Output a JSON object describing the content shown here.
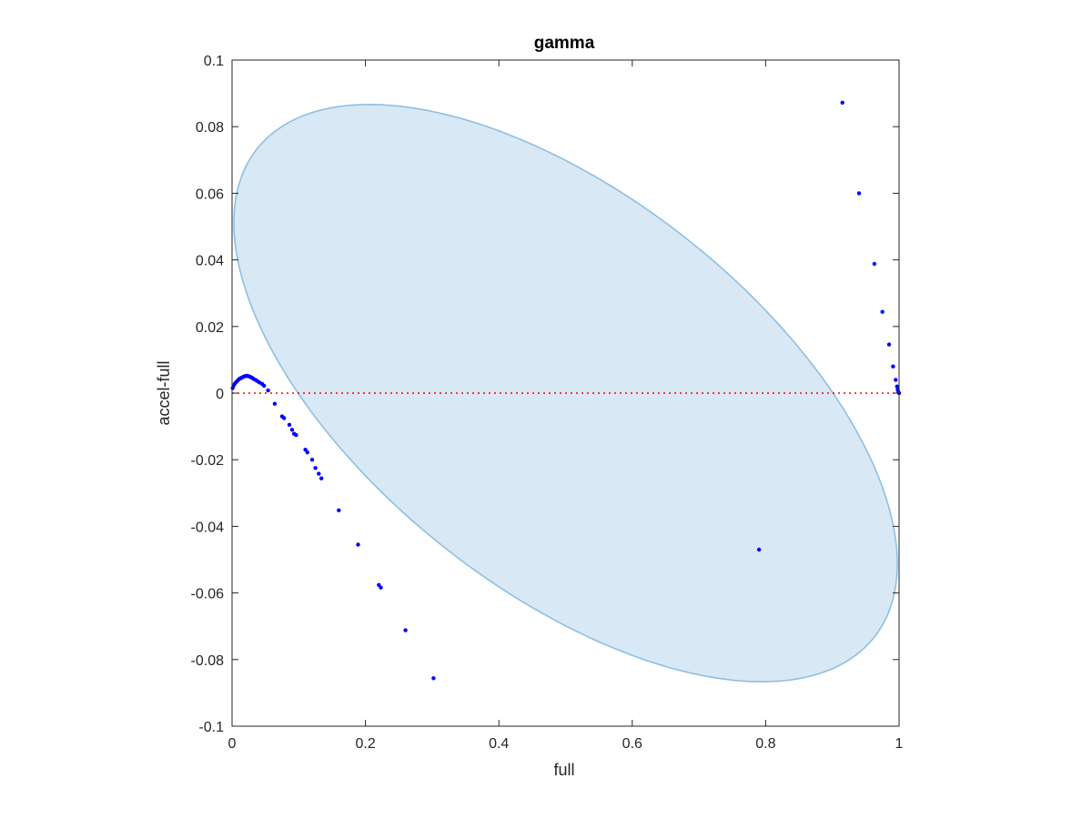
{
  "chart_data": {
    "type": "scatter",
    "title": "gamma",
    "xlabel": "full",
    "ylabel": "accel-full",
    "xlim": [
      0,
      1
    ],
    "ylim": [
      -0.1,
      0.1
    ],
    "xticks": [
      0,
      0.2,
      0.4,
      0.6,
      0.8,
      1
    ],
    "xtick_labels": [
      "0",
      "0.2",
      "0.4",
      "0.6",
      "0.8",
      "1"
    ],
    "yticks": [
      -0.1,
      -0.08,
      -0.06,
      -0.04,
      -0.02,
      0,
      0.02,
      0.04,
      0.06,
      0.08,
      0.1
    ],
    "ytick_labels": [
      "-0.1",
      "-0.08",
      "-0.06",
      "-0.04",
      "-0.02",
      "0",
      "0.02",
      "0.04",
      "0.06",
      "0.08",
      "0.1"
    ],
    "grid": false,
    "box": true,
    "reference_line": {
      "y": 0,
      "style": "dotted",
      "color": "#ff0000"
    },
    "ellipse": {
      "center": [
        0.5,
        0
      ],
      "semi_axis_x": 0.5,
      "semi_axis_y": 0.0695,
      "rotation_deg": -6,
      "clip_to_x": [
        0,
        1
      ],
      "fill_color": "#d9e8f5",
      "edge_color": "#8cc0e2"
    },
    "series": [
      {
        "marker_color": "#0000ff",
        "points": [
          [
            0.001,
            0.0015
          ],
          [
            0.002,
            0.0022
          ],
          [
            0.004,
            0.0028
          ],
          [
            0.006,
            0.0033
          ],
          [
            0.008,
            0.0037
          ],
          [
            0.01,
            0.0041
          ],
          [
            0.012,
            0.0044
          ],
          [
            0.014,
            0.0046
          ],
          [
            0.016,
            0.0048
          ],
          [
            0.018,
            0.005
          ],
          [
            0.02,
            0.0051
          ],
          [
            0.022,
            0.0052
          ],
          [
            0.024,
            0.0051
          ],
          [
            0.026,
            0.005
          ],
          [
            0.028,
            0.0048
          ],
          [
            0.03,
            0.0046
          ],
          [
            0.032,
            0.0043
          ],
          [
            0.035,
            0.004
          ],
          [
            0.038,
            0.0036
          ],
          [
            0.041,
            0.0032
          ],
          [
            0.045,
            0.0028
          ],
          [
            0.048,
            0.0022
          ],
          [
            0.054,
            0.0008
          ],
          [
            0.064,
            -0.0032
          ],
          [
            0.075,
            -0.007
          ],
          [
            0.078,
            -0.0075
          ],
          [
            0.086,
            -0.0095
          ],
          [
            0.09,
            -0.011
          ],
          [
            0.093,
            -0.0122
          ],
          [
            0.096,
            -0.0126
          ],
          [
            0.11,
            -0.017
          ],
          [
            0.113,
            -0.0178
          ],
          [
            0.12,
            -0.02
          ],
          [
            0.125,
            -0.0225
          ],
          [
            0.13,
            -0.0242
          ],
          [
            0.134,
            -0.0256
          ],
          [
            0.16,
            -0.0352
          ],
          [
            0.189,
            -0.0455
          ],
          [
            0.22,
            -0.0576
          ],
          [
            0.223,
            -0.0584
          ],
          [
            0.26,
            -0.0712
          ],
          [
            0.302,
            -0.0856
          ],
          [
            0.79,
            -0.047
          ],
          [
            0.915,
            0.0872
          ],
          [
            0.94,
            0.06
          ],
          [
            0.963,
            0.0388
          ],
          [
            0.975,
            0.0244
          ],
          [
            0.985,
            0.0146
          ],
          [
            0.991,
            0.008
          ],
          [
            0.995,
            0.004
          ],
          [
            0.997,
            0.002
          ],
          [
            0.998,
            0.001
          ],
          [
            0.999,
            0.0003
          ],
          [
            1.0,
            0.0
          ]
        ]
      }
    ]
  }
}
